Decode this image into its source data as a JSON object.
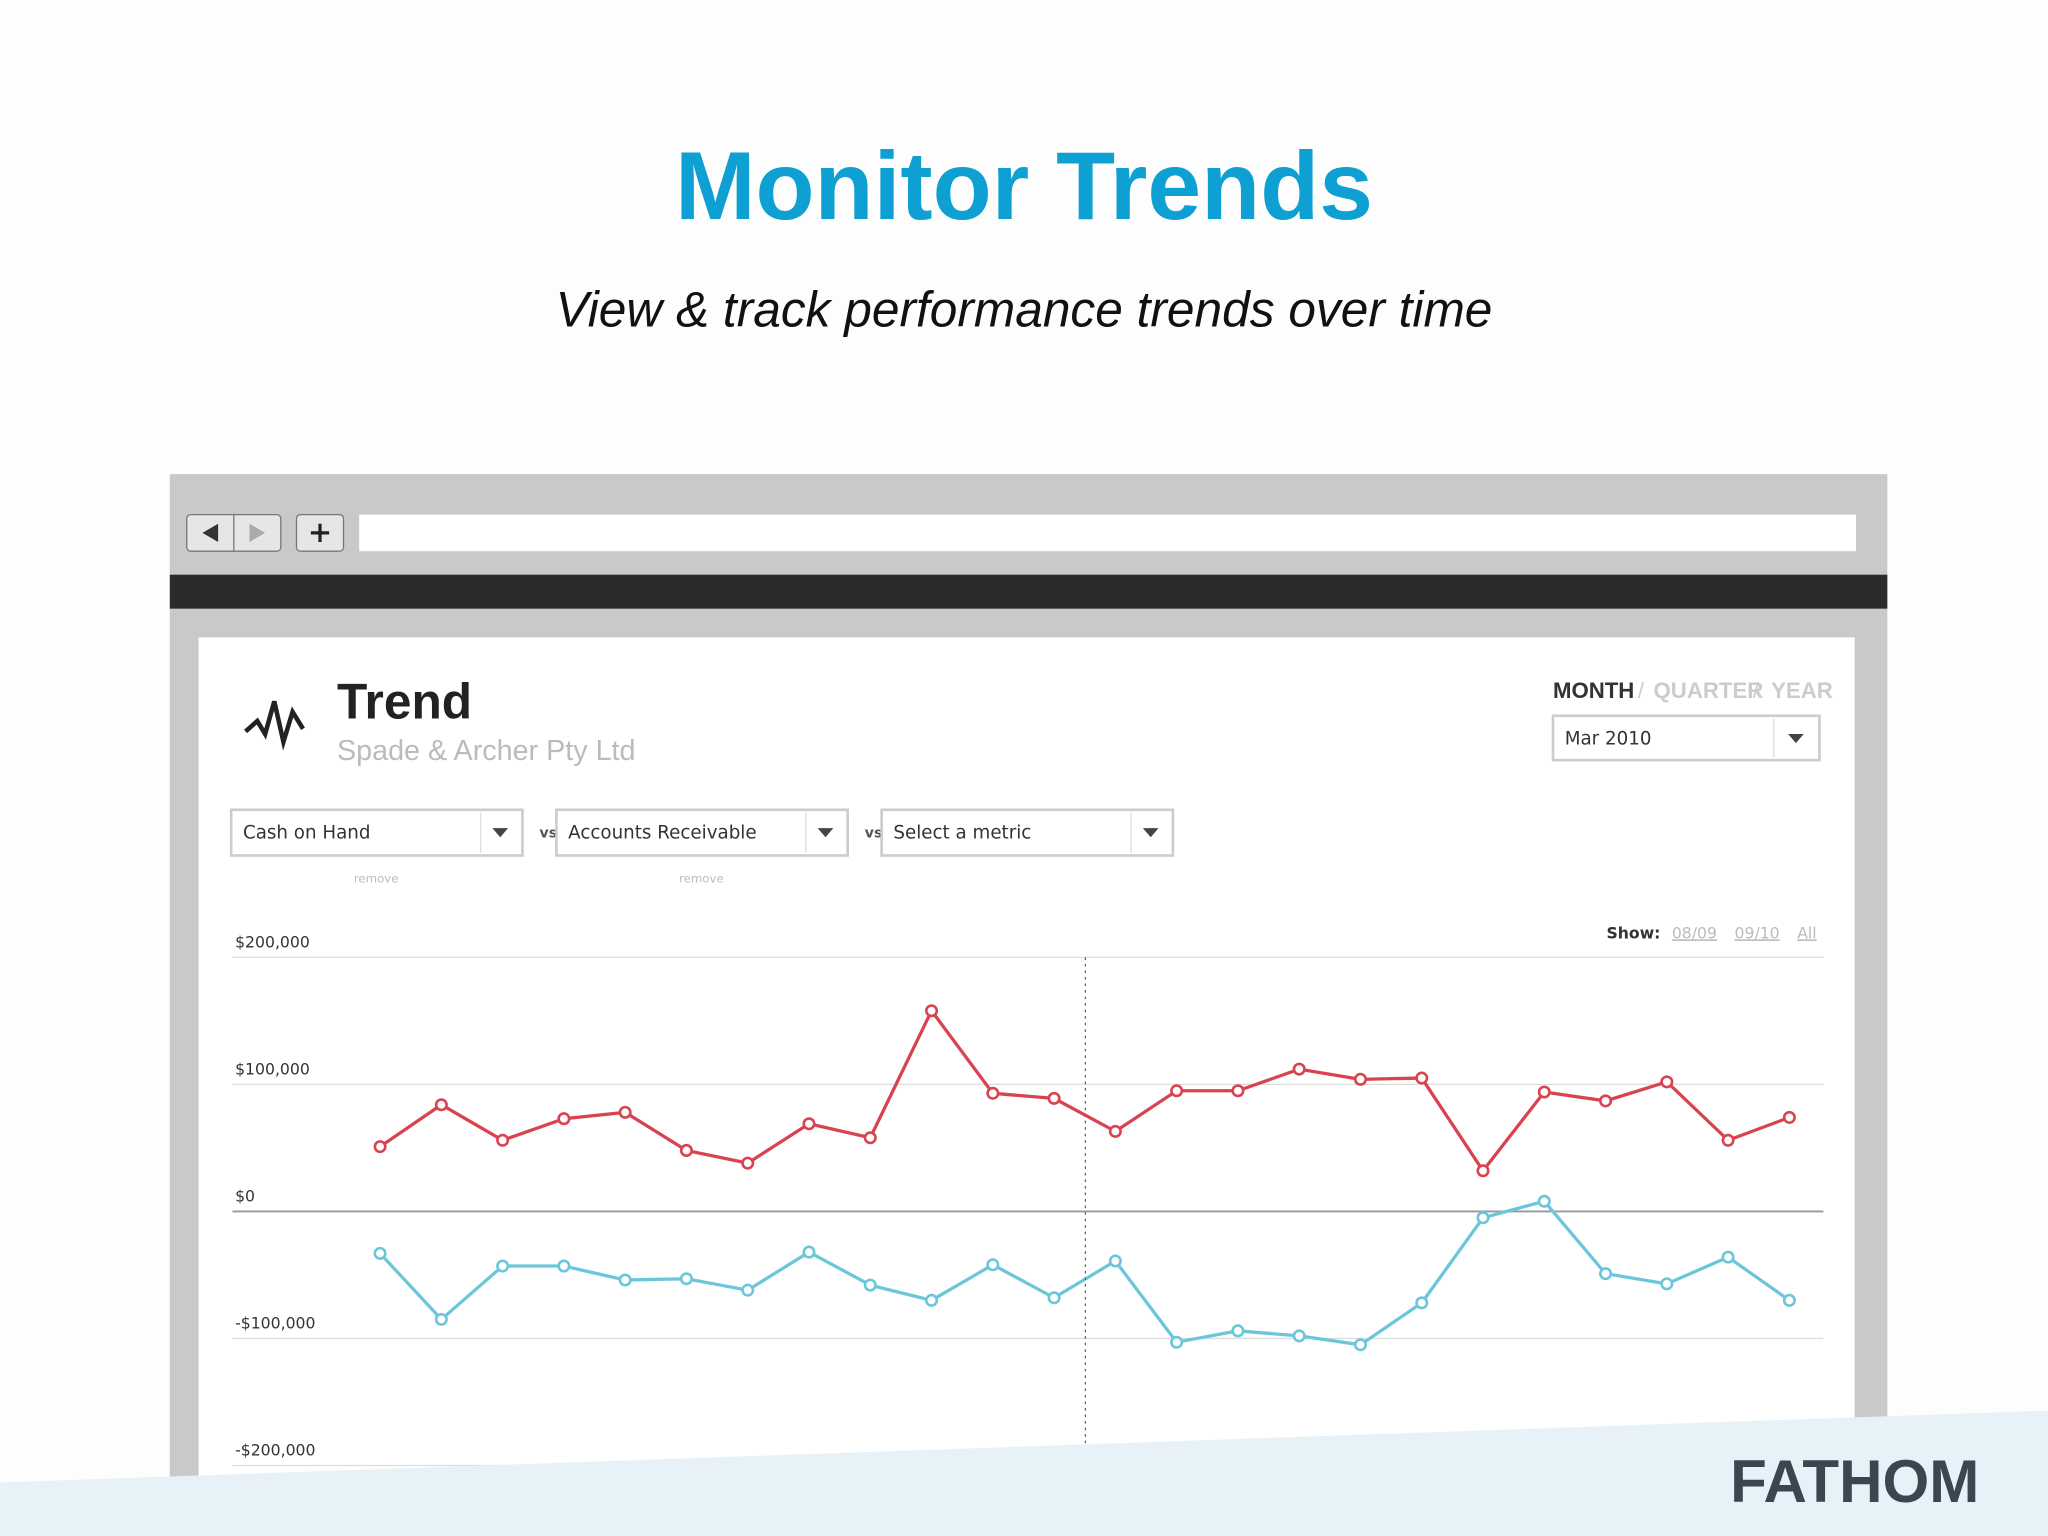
{
  "header": {
    "title": "Monitor Trends",
    "subtitle": "View & track performance trends over time"
  },
  "ui": {
    "heading": "Trend",
    "company": "Spade & Archer Pty Ltd",
    "period_month": "MONTH",
    "period_sep_1": "/",
    "period_quarter": "QUARTER",
    "period_sep_2": "/",
    "period_year": "YEAR",
    "date_select": "Mar 2010",
    "vs_1": "vs",
    "vs_2": "vs",
    "metric_3": "Select a metric",
    "remove_1": "remove",
    "remove_2": "remove",
    "show_label": "Show:",
    "show_1": "08/09",
    "show_2": "09/10",
    "show_3": "All",
    "brand": "FATHOM"
  },
  "chart_data": {
    "type": "line",
    "categories": [
      null,
      null,
      null,
      null,
      null,
      null,
      null,
      null,
      null,
      null,
      null,
      null,
      null,
      null,
      null,
      null,
      null,
      null,
      null,
      null,
      null,
      null,
      null,
      null
    ],
    "series": [
      {
        "name": "Cash on Hand",
        "color": "#d9434f",
        "values": [
          51000,
          84000,
          56000,
          73000,
          78000,
          48000,
          38000,
          69000,
          58000,
          158000,
          93000,
          89000,
          63000,
          95000,
          95000,
          112000,
          104000,
          105000,
          32000,
          94000,
          87000,
          102000,
          56000,
          74000
        ]
      },
      {
        "name": "Accounts Receivable",
        "color": "#6cc6da",
        "values": [
          -33000,
          -85000,
          -43000,
          -43000,
          -54000,
          -53000,
          -62000,
          -32000,
          -58000,
          -70000,
          -42000,
          -68000,
          -39000,
          -103000,
          -94000,
          -98000,
          -105000,
          -72000,
          -5000,
          8000,
          -49000,
          -57000,
          -36000,
          -70000
        ]
      }
    ],
    "ylim": [
      -200000,
      200000
    ],
    "yticks": [
      {
        "value": -200000,
        "label": "-$200,000"
      },
      {
        "value": -100000,
        "label": "-$100,000"
      },
      {
        "value": 0,
        "label": "$0"
      },
      {
        "value": 100000,
        "label": "$100,000"
      },
      {
        "value": 200000,
        "label": "$200,000"
      }
    ],
    "grid": true
  }
}
